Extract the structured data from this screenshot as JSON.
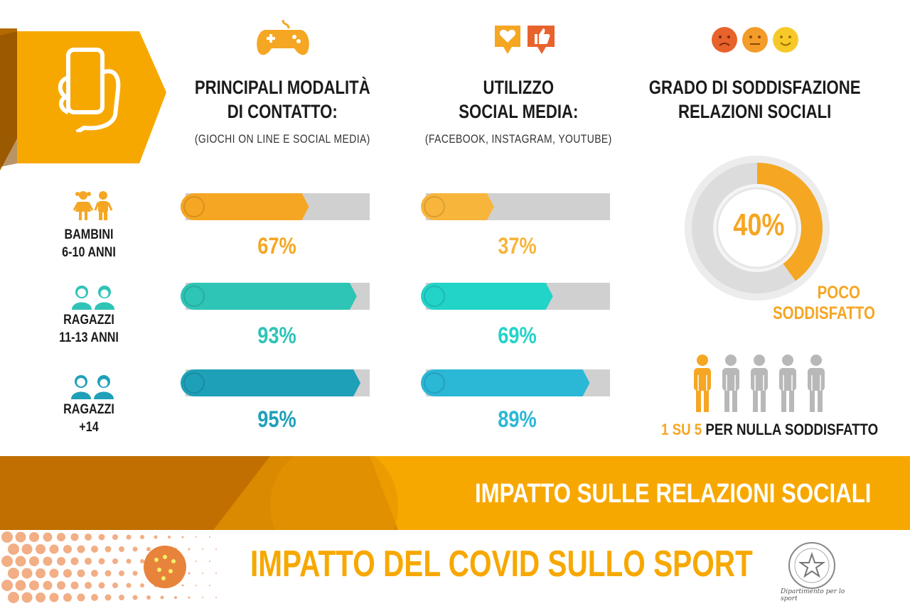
{
  "chart_data": [
    {
      "type": "bar",
      "title": "PRINCIPALI MODALITÀ DI CONTATTO:",
      "subtitle": "(GIOCHI ON LINE E SOCIAL MEDIA)",
      "categories": [
        "BAMBINI 6-10 ANNI",
        "RAGAZZI 11-13 ANNI",
        "RAGAZZI +14"
      ],
      "values": [
        67,
        93,
        95
      ],
      "labels": [
        "67%",
        "93%",
        "95%"
      ],
      "colors": [
        "#f5a623",
        "#2ec4b6",
        "#1ea0b8"
      ]
    },
    {
      "type": "bar",
      "title": "UTILIZZO SOCIAL MEDIA:",
      "subtitle": "(FACEBOOK, INSTAGRAM, YOUTUBE)",
      "categories": [
        "BAMBINI 6-10 ANNI",
        "RAGAZZI 11-13 ANNI",
        "RAGAZZI +14"
      ],
      "values": [
        37,
        69,
        89
      ],
      "labels": [
        "37%",
        "69%",
        "89%"
      ],
      "colors": [
        "#f7b53b",
        "#22d3c8",
        "#2bb7d6"
      ]
    },
    {
      "type": "pie",
      "title": "GRADO DI SODDISFAZIONE RELAZIONI SOCIALI",
      "values": [
        40
      ],
      "center_label": "40%",
      "annotation": "POCO SODDISFATTO",
      "color": "#f5a623"
    }
  ],
  "headings": {
    "col1_line1": "PRINCIPALI MODALITÀ",
    "col1_line2": "DI CONTATTO:",
    "col1_sub": "(GIOCHI ON LINE E SOCIAL MEDIA)",
    "col2_line1": "UTILIZZO",
    "col2_line2": "SOCIAL MEDIA:",
    "col2_sub": "(FACEBOOK, INSTAGRAM, YOUTUBE)",
    "col3_line1": "GRADO DI SODDISFAZIONE",
    "col3_line2": "RELAZIONI SOCIALI"
  },
  "rows": [
    {
      "line1": "BAMBINI",
      "line2": "6-10 ANNI",
      "icon": "children-icon"
    },
    {
      "line1": "RAGAZZI",
      "line2": "11-13 ANNI",
      "icon": "teens-icon"
    },
    {
      "line1": "RAGAZZI",
      "line2": "+14",
      "icon": "youth-icon"
    }
  ],
  "donut": {
    "value": 40,
    "label": "40%",
    "note_line1": "POCO",
    "note_line2": "SODDISFATTO"
  },
  "people": {
    "highlight": 1,
    "total": 5,
    "caption_highlight": "1 SU 5",
    "caption_rest": "PER NULLA SODDISFATTO"
  },
  "banner": {
    "text": "IMPATTO SULLE RELAZIONI SOCIALI"
  },
  "footer": {
    "title": "IMPATTO DEL COVID SULLO SPORT",
    "signature": "Dipartimento per lo sport"
  },
  "colors": {
    "orange": "#f5a623",
    "teal": "#2ec4b6",
    "blue": "#1ea0b8",
    "grey": "#d0d0d0",
    "banner": "#f7a800",
    "dark_orange": "#c06f00"
  }
}
